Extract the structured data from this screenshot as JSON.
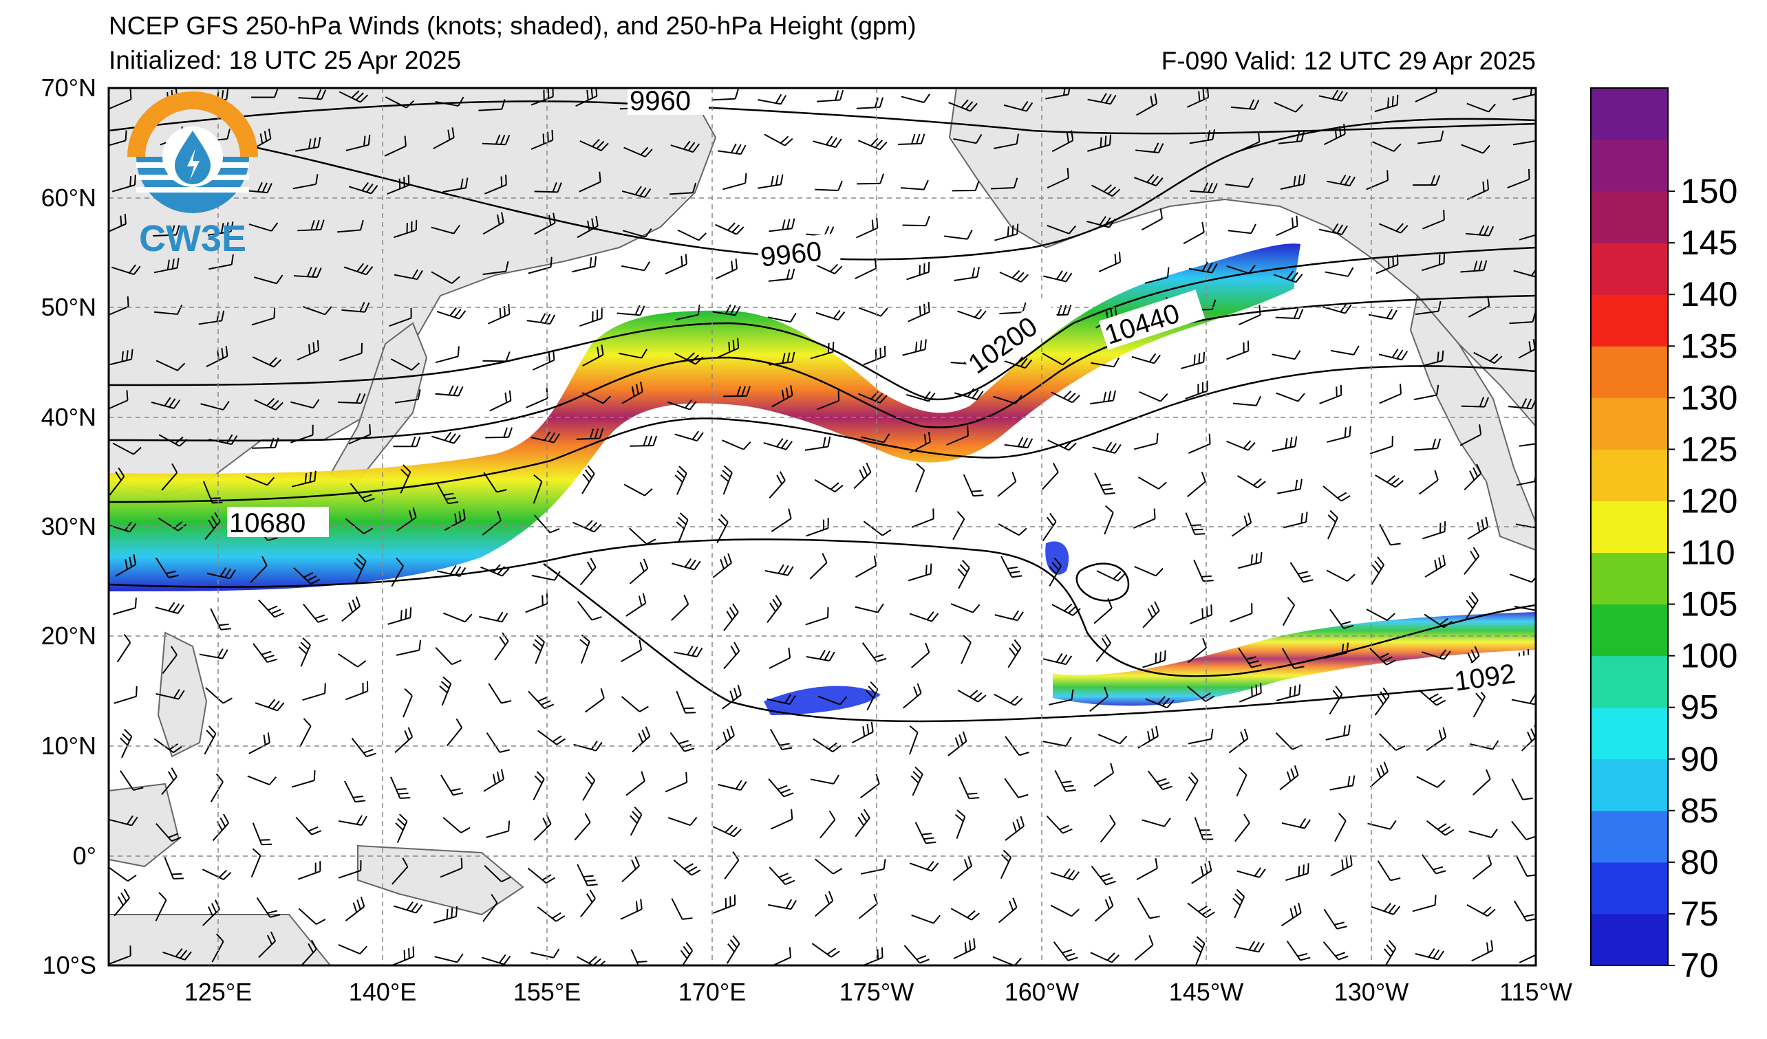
{
  "header": {
    "title": "NCEP GFS 250-hPa Winds (knots; shaded), and 250-hPa Height (gpm)",
    "initialized": "Initialized: 18 UTC 25 Apr 2025",
    "valid": "F-090  Valid: 12 UTC 29 Apr 2025"
  },
  "logo": {
    "text": "CW3E"
  },
  "axes": {
    "lat_labels": [
      "70°N",
      "60°N",
      "50°N",
      "40°N",
      "30°N",
      "20°N",
      "10°N",
      "0°",
      "10°S"
    ],
    "lon_labels": [
      "125°E",
      "140°E",
      "155°E",
      "170°E",
      "175°W",
      "160°W",
      "145°W",
      "130°W",
      "115°W"
    ]
  },
  "contour_labels": [
    "9960",
    "9960",
    "10200",
    "10440",
    "10680",
    "1092"
  ],
  "colorbar": {
    "ticks": [
      "70",
      "75",
      "80",
      "85",
      "90",
      "95",
      "100",
      "105",
      "110",
      "120",
      "125",
      "130",
      "135",
      "140",
      "145",
      "150"
    ],
    "colors": [
      "#1a1fcc",
      "#1f3be8",
      "#2f78f2",
      "#25c6f2",
      "#1de6ec",
      "#22d9a1",
      "#1fbe2a",
      "#6fcf1f",
      "#f2f21a",
      "#f7c21a",
      "#f6a21e",
      "#f57a1c",
      "#f22418",
      "#d41e3a",
      "#a31a5c",
      "#8a1a78",
      "#6e1a8c"
    ]
  }
}
